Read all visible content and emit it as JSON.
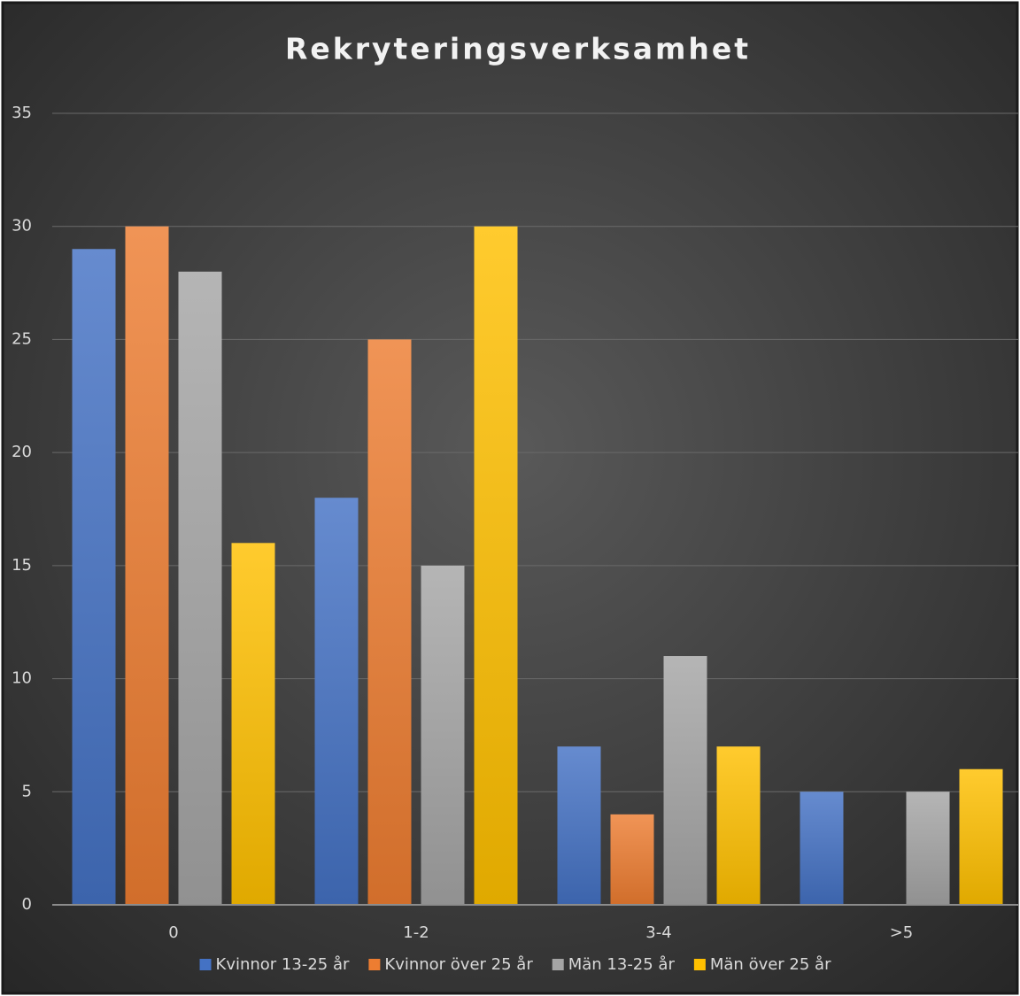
{
  "chart_data": {
    "type": "bar",
    "title": "Rekryteringsverksamhet",
    "categories": [
      "0",
      "1-2",
      "3-4",
      ">5"
    ],
    "series": [
      {
        "name": "Kvinnor 13-25 år",
        "color": "#4472c4",
        "values": [
          29,
          18,
          7,
          5
        ]
      },
      {
        "name": "Kvinnor över 25 år",
        "color": "#ed7d31",
        "values": [
          30,
          25,
          4,
          0
        ]
      },
      {
        "name": "Män 13-25 år",
        "color": "#a5a5a5",
        "values": [
          28,
          15,
          11,
          5
        ]
      },
      {
        "name": "Män över 25 år",
        "color": "#ffc000",
        "values": [
          16,
          30,
          7,
          6
        ]
      }
    ],
    "ylim": [
      0,
      35
    ],
    "yticks": [
      0,
      5,
      10,
      15,
      20,
      25,
      30,
      35
    ],
    "grid": true,
    "legend": "bottom"
  }
}
